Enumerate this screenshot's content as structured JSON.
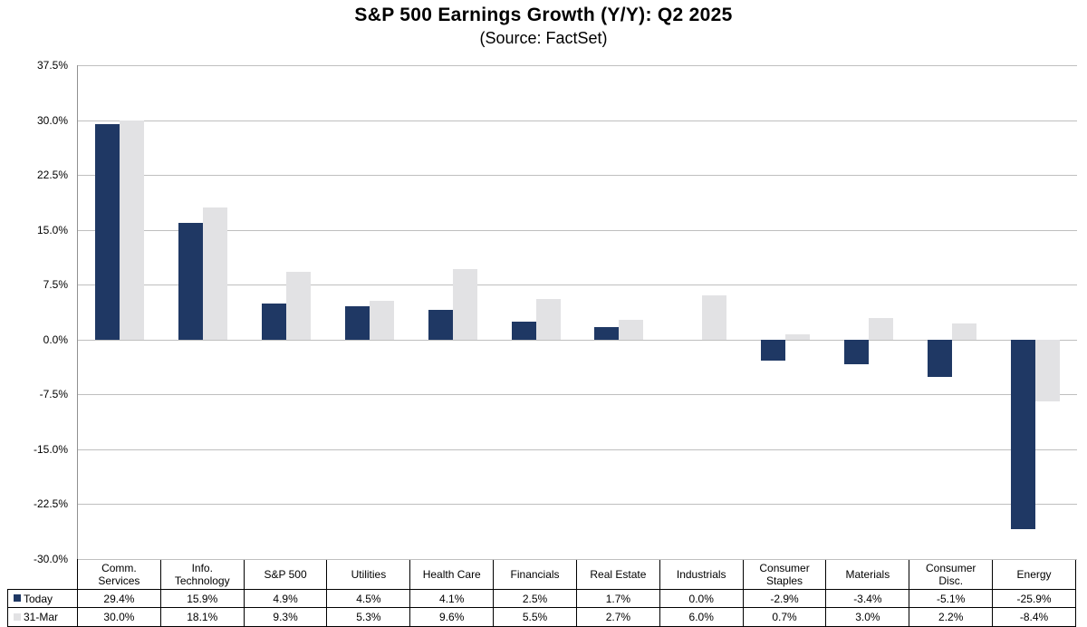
{
  "title": "S&P 500 Earnings Growth (Y/Y): Q2 2025",
  "subtitle": "(Source: FactSet)",
  "chart_data": {
    "type": "bar",
    "categories": [
      "Comm.\nServices",
      "Info.\nTechnology",
      "S&P 500",
      "Utilities",
      "Health Care",
      "Financials",
      "Real Estate",
      "Industrials",
      "Consumer\nStaples",
      "Materials",
      "Consumer\nDisc.",
      "Energy"
    ],
    "series": [
      {
        "name": "Today",
        "color": "#1F3864",
        "values": [
          29.4,
          15.9,
          4.9,
          4.5,
          4.1,
          2.5,
          1.7,
          0.0,
          -2.9,
          -3.4,
          -5.1,
          -25.9
        ]
      },
      {
        "name": "31-Mar",
        "color": "#E2E2E4",
        "values": [
          30.0,
          18.1,
          9.3,
          5.3,
          9.6,
          5.5,
          2.7,
          6.0,
          0.7,
          3.0,
          2.2,
          -8.4
        ]
      }
    ],
    "ylim": [
      -30.0,
      37.5
    ],
    "y_tick_step": 7.5,
    "y_tick_labels": [
      "37.5%",
      "30.0%",
      "22.5%",
      "15.0%",
      "7.5%",
      "0.0%",
      "-7.5%",
      "-15.0%",
      "-22.5%",
      "-30.0%"
    ],
    "grid": true,
    "legend_position": "data-table-left-column",
    "value_format": "one_decimal_percent"
  },
  "colors": {
    "gridline": "#BFBFBF",
    "axis_line": "#909090",
    "table_border": "#000000",
    "text": "#000000",
    "background": "#FFFFFF"
  }
}
